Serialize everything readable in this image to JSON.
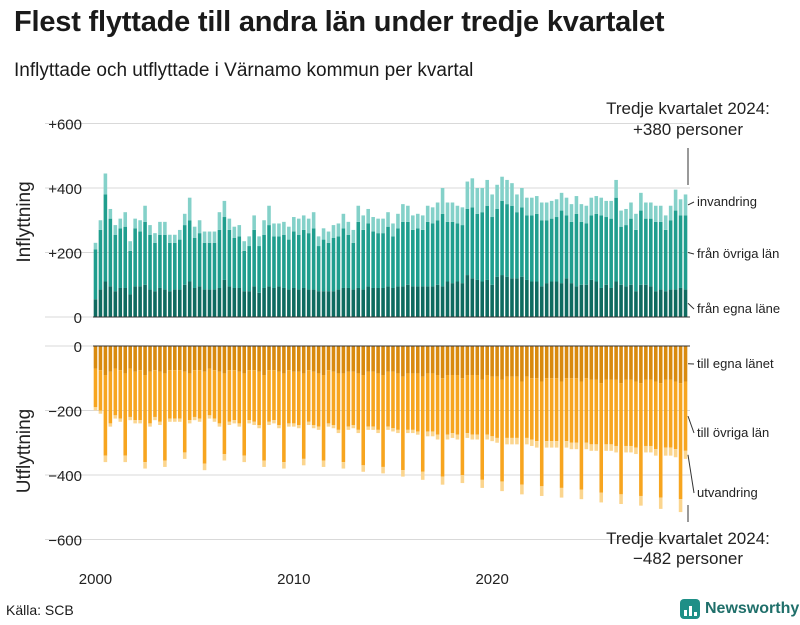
{
  "title": "Flest flyttade till andra län under tredje kvartalet",
  "subtitle": "Inflyttade och utflyttade i Värnamo kommun per kvartal",
  "source": "Källa: SCB",
  "brand": "Newsworthy",
  "colors": {
    "in_egna": "#0f6b60",
    "in_ovriga": "#1f9e8e",
    "in_invandring": "#84d1c9",
    "out_egna": "#d98a0e",
    "out_ovriga": "#f7a51f",
    "out_utvandring": "#fbd58e",
    "grid": "#d9d9d9",
    "axis": "#333333"
  },
  "chart_data": [
    {
      "type": "bar",
      "stacked": true,
      "ylabel": "Inflyttning",
      "ylim": [
        0,
        620
      ],
      "yticks": [
        0,
        200,
        400,
        600
      ],
      "yticklabels": [
        "0",
        "+200",
        "+400",
        "+600"
      ],
      "annotation": [
        "Tredje kvartalet 2024:",
        "+380 personer"
      ],
      "series": [
        {
          "name": "från egna läne",
          "values": [
            55,
            85,
            110,
            95,
            80,
            90,
            90,
            70,
            95,
            95,
            100,
            85,
            80,
            90,
            85,
            80,
            85,
            85,
            100,
            110,
            90,
            95,
            85,
            85,
            85,
            90,
            115,
            95,
            90,
            90,
            80,
            80,
            95,
            75,
            90,
            95,
            90,
            95,
            90,
            85,
            90,
            85,
            90,
            85,
            85,
            80,
            80,
            80,
            80,
            85,
            90,
            90,
            85,
            90,
            85,
            95,
            90,
            90,
            90,
            95,
            90,
            95,
            95,
            100,
            95,
            95,
            95,
            95,
            95,
            100,
            95,
            110,
            105,
            110,
            105,
            130,
            120,
            115,
            110,
            115,
            100,
            125,
            130,
            125,
            120,
            120,
            125,
            115,
            110,
            110,
            95,
            105,
            110,
            110,
            105,
            120,
            105,
            95,
            100,
            100,
            115,
            110,
            90,
            100,
            90,
            110,
            100,
            95,
            100,
            80,
            100,
            100,
            95,
            80,
            85,
            80,
            85,
            85,
            90,
            85
          ]
        },
        {
          "name": "från övriga län",
          "values": [
            155,
            185,
            270,
            210,
            175,
            185,
            190,
            135,
            180,
            170,
            195,
            170,
            150,
            165,
            170,
            150,
            145,
            155,
            185,
            190,
            155,
            165,
            145,
            145,
            145,
            180,
            195,
            175,
            155,
            160,
            125,
            140,
            175,
            145,
            165,
            190,
            160,
            155,
            165,
            155,
            175,
            170,
            180,
            175,
            190,
            140,
            160,
            150,
            165,
            165,
            185,
            165,
            145,
            205,
            185,
            195,
            175,
            170,
            170,
            185,
            160,
            180,
            200,
            195,
            175,
            180,
            175,
            200,
            195,
            200,
            225,
            185,
            190,
            180,
            180,
            205,
            220,
            205,
            215,
            230,
            210,
            210,
            230,
            225,
            225,
            205,
            215,
            200,
            205,
            210,
            205,
            195,
            195,
            200,
            225,
            195,
            190,
            225,
            195,
            190,
            200,
            210,
            225,
            210,
            215,
            260,
            180,
            190,
            205,
            190,
            230,
            205,
            210,
            215,
            210,
            190,
            215,
            245,
            225,
            230
          ]
        },
        {
          "name": "invandring",
          "values": [
            20,
            30,
            65,
            30,
            30,
            30,
            45,
            30,
            30,
            35,
            50,
            30,
            30,
            40,
            40,
            25,
            25,
            30,
            35,
            70,
            35,
            40,
            35,
            35,
            35,
            55,
            50,
            35,
            35,
            35,
            30,
            30,
            45,
            30,
            45,
            60,
            40,
            40,
            40,
            40,
            45,
            50,
            45,
            45,
            50,
            30,
            35,
            35,
            40,
            40,
            45,
            40,
            40,
            50,
            45,
            45,
            45,
            45,
            45,
            45,
            40,
            45,
            55,
            50,
            45,
            45,
            45,
            50,
            50,
            55,
            80,
            60,
            60,
            55,
            55,
            85,
            90,
            80,
            75,
            80,
            70,
            75,
            75,
            75,
            70,
            55,
            60,
            55,
            55,
            55,
            55,
            55,
            55,
            55,
            55,
            55,
            55,
            55,
            55,
            55,
            55,
            55,
            55,
            50,
            55,
            55,
            50,
            50,
            50,
            50,
            55,
            50,
            50,
            50,
            50,
            45,
            45,
            65,
            50,
            65
          ]
        }
      ]
    },
    {
      "type": "bar",
      "stacked": true,
      "ylabel": "Utflyttning",
      "ylim": [
        -600,
        0
      ],
      "yticks": [
        0,
        -200,
        -400,
        -600
      ],
      "yticklabels": [
        "0",
        "−200",
        "−400",
        "−600"
      ],
      "annotation": [
        "Tredje kvartalet 2024:",
        "−482 personer"
      ],
      "x": {
        "start_year": 2000,
        "quarters_per_year": 4,
        "ticks": [
          2000,
          2010,
          2020
        ],
        "ticklabels": [
          "2000",
          "2010",
          "2020"
        ]
      },
      "series": [
        {
          "name": "till egna länet",
          "values": [
            -70,
            -75,
            -90,
            -80,
            -70,
            -75,
            -85,
            -70,
            -80,
            -75,
            -90,
            -80,
            -75,
            -80,
            -85,
            -75,
            -75,
            -75,
            -80,
            -85,
            -75,
            -75,
            -80,
            -70,
            -75,
            -80,
            -85,
            -75,
            -75,
            -80,
            -85,
            -75,
            -75,
            -80,
            -90,
            -75,
            -75,
            -80,
            -85,
            -75,
            -80,
            -80,
            -85,
            -75,
            -80,
            -85,
            -90,
            -75,
            -80,
            -85,
            -85,
            -80,
            -80,
            -85,
            -90,
            -80,
            -80,
            -85,
            -90,
            -80,
            -80,
            -85,
            -95,
            -85,
            -85,
            -85,
            -95,
            -85,
            -85,
            -90,
            -100,
            -90,
            -90,
            -90,
            -100,
            -90,
            -90,
            -90,
            -105,
            -90,
            -95,
            -95,
            -105,
            -95,
            -95,
            -95,
            -110,
            -95,
            -100,
            -100,
            -110,
            -100,
            -100,
            -100,
            -110,
            -100,
            -100,
            -100,
            -110,
            -100,
            -105,
            -105,
            -115,
            -105,
            -105,
            -105,
            -115,
            -105,
            -105,
            -110,
            -115,
            -105,
            -105,
            -110,
            -115,
            -105,
            -105,
            -110,
            -115,
            -110
          ]
        },
        {
          "name": "till övriga län",
          "values": [
            -120,
            -125,
            -250,
            -160,
            -145,
            -150,
            -255,
            -150,
            -150,
            -155,
            -270,
            -160,
            -145,
            -155,
            -270,
            -150,
            -150,
            -150,
            -250,
            -145,
            -145,
            -150,
            -285,
            -145,
            -150,
            -160,
            -250,
            -160,
            -155,
            -160,
            -255,
            -155,
            -160,
            -165,
            -265,
            -160,
            -155,
            -165,
            -275,
            -165,
            -160,
            -165,
            -265,
            -160,
            -165,
            -165,
            -265,
            -165,
            -165,
            -175,
            -275,
            -170,
            -165,
            -175,
            -280,
            -170,
            -170,
            -175,
            -285,
            -170,
            -175,
            -175,
            -290,
            -175,
            -175,
            -180,
            -295,
            -180,
            -180,
            -185,
            -305,
            -185,
            -180,
            -185,
            -300,
            -180,
            -185,
            -185,
            -310,
            -185,
            -185,
            -190,
            -315,
            -190,
            -190,
            -190,
            -320,
            -190,
            -190,
            -195,
            -325,
            -195,
            -195,
            -195,
            -330,
            -195,
            -200,
            -200,
            -335,
            -200,
            -200,
            -200,
            -340,
            -200,
            -200,
            -205,
            -345,
            -205,
            -205,
            -205,
            -350,
            -205,
            -205,
            -210,
            -355,
            -210,
            -210,
            -210,
            -360,
            -215
          ]
        },
        {
          "name": "utvandring",
          "values": [
            -10,
            -10,
            -20,
            -10,
            -10,
            -10,
            -20,
            -10,
            -10,
            -10,
            -20,
            -10,
            -10,
            -10,
            -20,
            -10,
            -10,
            -10,
            -20,
            -10,
            -10,
            -10,
            -20,
            -10,
            -10,
            -10,
            -20,
            -10,
            -10,
            -10,
            -20,
            -10,
            -10,
            -10,
            -20,
            -10,
            -10,
            -10,
            -20,
            -10,
            -10,
            -10,
            -20,
            -10,
            -10,
            -10,
            -20,
            -10,
            -10,
            -10,
            -20,
            -10,
            -10,
            -10,
            -20,
            -10,
            -10,
            -10,
            -20,
            -10,
            -10,
            -10,
            -20,
            -10,
            -10,
            -10,
            -25,
            -15,
            -15,
            -15,
            -25,
            -15,
            -15,
            -15,
            -25,
            -15,
            -15,
            -15,
            -25,
            -15,
            -15,
            -15,
            -30,
            -20,
            -20,
            -20,
            -30,
            -20,
            -20,
            -20,
            -30,
            -20,
            -20,
            -20,
            -30,
            -20,
            -20,
            -20,
            -30,
            -20,
            -20,
            -20,
            -30,
            -20,
            -20,
            -20,
            -30,
            -20,
            -20,
            -20,
            -30,
            -20,
            -20,
            -20,
            -35,
            -25,
            -25,
            -25,
            -40,
            -25,
            -25,
            -25
          ]
        }
      ]
    }
  ]
}
